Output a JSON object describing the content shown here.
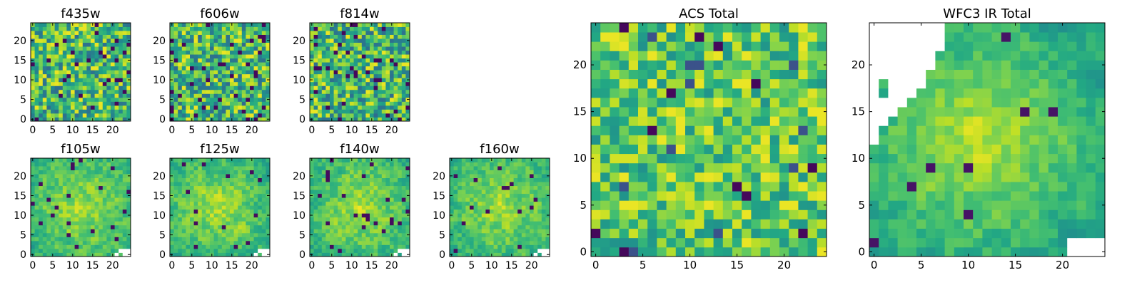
{
  "chart_data": [
    {
      "type": "heatmap",
      "title": "f435w",
      "size": 25,
      "xticks": [
        0,
        5,
        10,
        15,
        20
      ],
      "yticks": [
        0,
        5,
        10,
        15,
        20
      ],
      "xlim": [
        -0.5,
        24.5
      ],
      "ylim": [
        -0.5,
        24.5
      ],
      "colormap": "viridis",
      "seed": 11,
      "smooth": 0,
      "mode": "noise"
    },
    {
      "type": "heatmap",
      "title": "f606w",
      "size": 25,
      "xticks": [
        0,
        5,
        10,
        15,
        20
      ],
      "yticks": [
        0,
        5,
        10,
        15,
        20
      ],
      "xlim": [
        -0.5,
        24.5
      ],
      "ylim": [
        -0.5,
        24.5
      ],
      "colormap": "viridis",
      "seed": 23,
      "smooth": 0,
      "mode": "noise"
    },
    {
      "type": "heatmap",
      "title": "f814w",
      "size": 25,
      "xticks": [
        0,
        5,
        10,
        15,
        20
      ],
      "yticks": [
        0,
        5,
        10,
        15,
        20
      ],
      "xlim": [
        -0.5,
        24.5
      ],
      "ylim": [
        -0.5,
        24.5
      ],
      "colormap": "viridis",
      "seed": 37,
      "smooth": 0,
      "mode": "noise"
    },
    {
      "type": "heatmap",
      "title": "f105w",
      "size": 25,
      "xticks": [
        0,
        5,
        10,
        15,
        20
      ],
      "yticks": [
        0,
        5,
        10,
        15,
        20
      ],
      "xlim": [
        -0.5,
        24.5
      ],
      "ylim": [
        -0.5,
        24.5
      ],
      "colormap": "viridis",
      "seed": 41,
      "smooth": 1,
      "mode": "ir",
      "blank": "bottom-right"
    },
    {
      "type": "heatmap",
      "title": "f125w",
      "size": 25,
      "xticks": [
        0,
        5,
        10,
        15,
        20
      ],
      "yticks": [
        0,
        5,
        10,
        15,
        20
      ],
      "xlim": [
        -0.5,
        24.5
      ],
      "ylim": [
        -0.5,
        24.5
      ],
      "colormap": "viridis",
      "seed": 53,
      "smooth": 1,
      "mode": "ir",
      "blank": "bottom-right"
    },
    {
      "type": "heatmap",
      "title": "f140w",
      "size": 25,
      "xticks": [
        0,
        5,
        10,
        15,
        20
      ],
      "yticks": [
        0,
        5,
        10,
        15,
        20
      ],
      "xlim": [
        -0.5,
        24.5
      ],
      "ylim": [
        -0.5,
        24.5
      ],
      "colormap": "viridis",
      "seed": 67,
      "smooth": 1,
      "mode": "ir",
      "blank": "bottom-right"
    },
    {
      "type": "heatmap",
      "title": "f160w",
      "size": 25,
      "xticks": [
        0,
        5,
        10,
        15,
        20
      ],
      "yticks": [
        0,
        5,
        10,
        15,
        20
      ],
      "xlim": [
        -0.5,
        24.5
      ],
      "ylim": [
        -0.5,
        24.5
      ],
      "colormap": "viridis",
      "seed": 79,
      "smooth": 1,
      "mode": "ir",
      "blank": "bottom-right"
    },
    {
      "type": "heatmap",
      "title": "ACS Total",
      "size": 25,
      "xticks": [
        0,
        5,
        10,
        15,
        20
      ],
      "yticks": [
        0,
        5,
        10,
        15,
        20
      ],
      "xlim": [
        -0.5,
        24.5
      ],
      "ylim": [
        -0.5,
        24.5
      ],
      "colormap": "viridis",
      "seed": 97,
      "smooth": 0,
      "mode": "acs"
    },
    {
      "type": "heatmap",
      "title": "WFC3 IR Total",
      "size": 25,
      "xticks": [
        0,
        5,
        10,
        15,
        20
      ],
      "yticks": [
        0,
        5,
        10,
        15,
        20
      ],
      "xlim": [
        -0.5,
        24.5
      ],
      "ylim": [
        -0.5,
        24.5
      ],
      "colormap": "viridis",
      "seed": 113,
      "smooth": 1,
      "mode": "irtotal",
      "blank": "top-left,bottom-right"
    }
  ],
  "colors": {
    "viridis_low": "#440154",
    "viridis_mid": "#21918c",
    "viridis_high": "#fde725",
    "axis": "#000000",
    "missing": "#ffffff"
  }
}
